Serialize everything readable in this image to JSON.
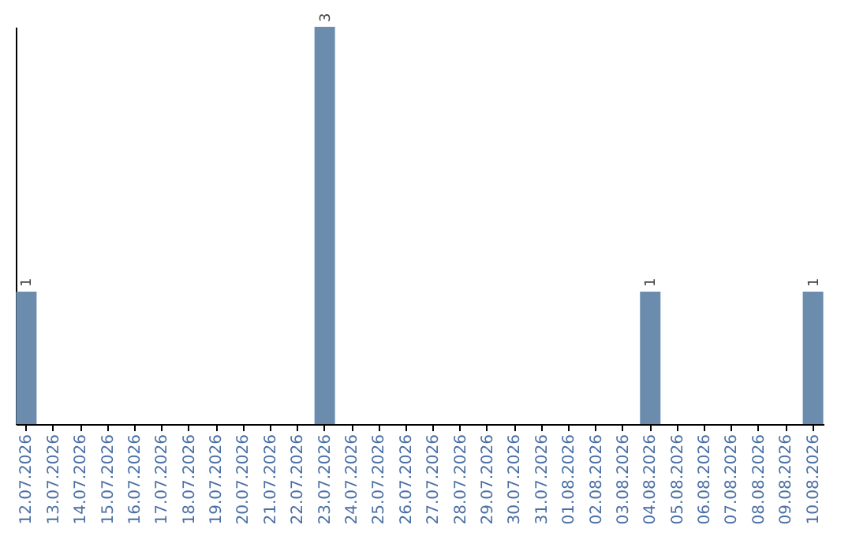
{
  "chart_data": {
    "type": "bar",
    "categories": [
      "12.07.2026",
      "13.07.2026",
      "14.07.2026",
      "15.07.2026",
      "16.07.2026",
      "17.07.2026",
      "18.07.2026",
      "19.07.2026",
      "20.07.2026",
      "21.07.2026",
      "22.07.2026",
      "23.07.2026",
      "24.07.2026",
      "25.07.2026",
      "26.07.2026",
      "27.07.2026",
      "28.07.2026",
      "29.07.2026",
      "30.07.2026",
      "31.07.2026",
      "01.08.2026",
      "02.08.2026",
      "03.08.2026",
      "04.08.2026",
      "05.08.2026",
      "06.08.2026",
      "07.08.2026",
      "08.08.2026",
      "09.08.2026",
      "10.08.2026"
    ],
    "values": [
      1,
      0,
      0,
      0,
      0,
      0,
      0,
      0,
      0,
      0,
      0,
      3,
      0,
      0,
      0,
      0,
      0,
      0,
      0,
      0,
      0,
      0,
      0,
      1,
      0,
      0,
      0,
      0,
      0,
      1
    ],
    "value_labels": [
      "1",
      null,
      null,
      null,
      null,
      null,
      null,
      null,
      null,
      null,
      null,
      "3",
      null,
      null,
      null,
      null,
      null,
      null,
      null,
      null,
      null,
      null,
      null,
      "1",
      null,
      null,
      null,
      null,
      null,
      "1"
    ],
    "color": "#6b8cad",
    "ylim": [
      0,
      3
    ],
    "tick_labels": "x",
    "grid": false
  }
}
